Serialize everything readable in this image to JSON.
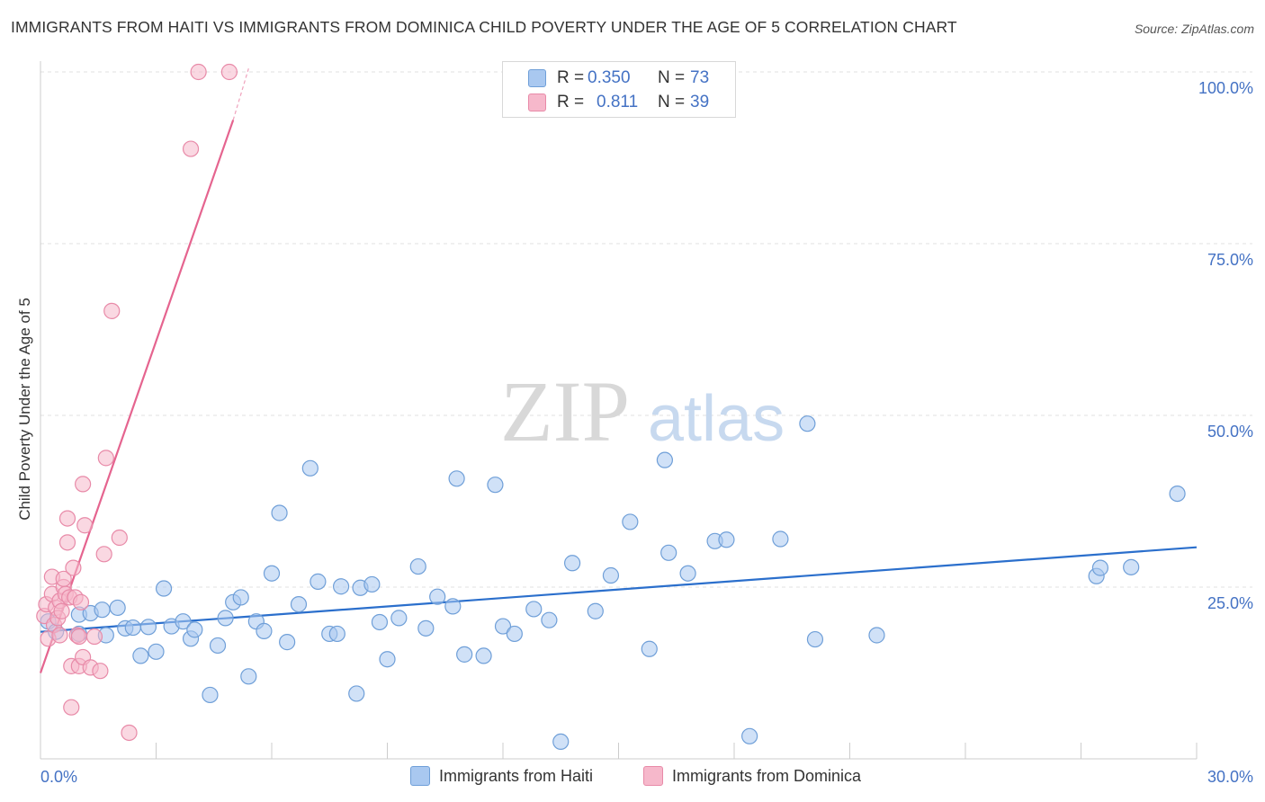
{
  "title": "IMMIGRANTS FROM HAITI VS IMMIGRANTS FROM DOMINICA CHILD POVERTY UNDER THE AGE OF 5 CORRELATION CHART",
  "source": "Source: ZipAtlas.com",
  "watermark": {
    "zip": "ZIP",
    "atlas": "atlas"
  },
  "legend": {
    "rows": [
      {
        "r_label": "R =",
        "r_value": "0.350",
        "n_label": "N =",
        "n_value": "73",
        "color": "#a9c8f0",
        "border": "#6f9fd8"
      },
      {
        "r_label": "R =",
        "r_value": "0.811",
        "n_label": "N =",
        "n_value": "39",
        "color": "#f6b8cb",
        "border": "#e88aa8"
      }
    ]
  },
  "bottom_legend": [
    {
      "label": "Immigrants from Haiti",
      "color": "#a9c8f0",
      "border": "#6f9fd8"
    },
    {
      "label": "Immigrants from Dominica",
      "color": "#f6b8cb",
      "border": "#e88aa8"
    }
  ],
  "chart_data": {
    "type": "scatter",
    "title": "IMMIGRANTS FROM HAITI VS IMMIGRANTS FROM DOMINICA CHILD POVERTY UNDER THE AGE OF 5 CORRELATION CHART",
    "xlabel": "",
    "ylabel": "Child Poverty Under the Age of 5",
    "xlim": [
      0,
      30
    ],
    "ylim": [
      0,
      100
    ],
    "x_tick_labels": [
      "0.0%",
      "30.0%"
    ],
    "y_tick_labels": [
      "25.0%",
      "50.0%",
      "75.0%",
      "100.0%"
    ],
    "y_ticks": [
      25,
      50,
      75,
      100
    ],
    "grid": true,
    "legend_position": "top-center",
    "series": [
      {
        "name": "Immigrants from Haiti",
        "color": "#6f9fd8",
        "fill": "#a9c8f0",
        "trend": {
          "x": [
            0,
            30
          ],
          "y": [
            18.5,
            30.8
          ],
          "color": "#2b6fcc"
        },
        "points": [
          [
            0.2,
            20.0
          ],
          [
            0.4,
            18.5
          ],
          [
            1.0,
            18.2
          ],
          [
            1.0,
            21.0
          ],
          [
            1.3,
            21.2
          ],
          [
            1.6,
            21.7
          ],
          [
            1.7,
            18.0
          ],
          [
            2.0,
            22.0
          ],
          [
            2.2,
            19.0
          ],
          [
            2.4,
            19.1
          ],
          [
            2.6,
            15.0
          ],
          [
            2.8,
            19.2
          ],
          [
            3.0,
            15.6
          ],
          [
            3.2,
            24.8
          ],
          [
            3.4,
            19.3
          ],
          [
            3.7,
            20.0
          ],
          [
            3.9,
            17.5
          ],
          [
            4.0,
            18.8
          ],
          [
            4.4,
            9.3
          ],
          [
            4.6,
            16.5
          ],
          [
            4.8,
            20.5
          ],
          [
            5.0,
            22.8
          ],
          [
            5.2,
            23.5
          ],
          [
            5.4,
            12.0
          ],
          [
            5.6,
            20.0
          ],
          [
            5.8,
            18.6
          ],
          [
            6.0,
            27.0
          ],
          [
            6.2,
            35.8
          ],
          [
            6.4,
            17.0
          ],
          [
            6.7,
            22.5
          ],
          [
            7.0,
            42.3
          ],
          [
            7.2,
            25.8
          ],
          [
            7.5,
            18.2
          ],
          [
            7.7,
            18.2
          ],
          [
            7.8,
            25.1
          ],
          [
            8.2,
            9.5
          ],
          [
            8.3,
            24.9
          ],
          [
            8.6,
            25.4
          ],
          [
            8.8,
            19.9
          ],
          [
            9.0,
            14.5
          ],
          [
            9.3,
            20.5
          ],
          [
            9.8,
            28.0
          ],
          [
            10.0,
            19.0
          ],
          [
            10.3,
            23.6
          ],
          [
            10.7,
            22.2
          ],
          [
            10.8,
            40.8
          ],
          [
            11.0,
            15.2
          ],
          [
            11.5,
            15.0
          ],
          [
            11.8,
            39.9
          ],
          [
            12.0,
            19.3
          ],
          [
            12.3,
            18.2
          ],
          [
            12.8,
            21.8
          ],
          [
            13.2,
            20.2
          ],
          [
            13.5,
            2.5
          ],
          [
            13.8,
            28.5
          ],
          [
            14.4,
            21.5
          ],
          [
            14.8,
            26.7
          ],
          [
            15.3,
            34.5
          ],
          [
            15.8,
            16.0
          ],
          [
            16.2,
            43.5
          ],
          [
            16.3,
            30.0
          ],
          [
            16.8,
            27.0
          ],
          [
            17.5,
            31.7
          ],
          [
            18.4,
            3.3
          ],
          [
            19.2,
            32.0
          ],
          [
            19.9,
            48.8
          ],
          [
            20.1,
            17.4
          ],
          [
            21.7,
            18.0
          ],
          [
            27.4,
            26.6
          ],
          [
            27.5,
            27.8
          ],
          [
            28.3,
            27.9
          ],
          [
            29.5,
            38.6
          ],
          [
            17.8,
            31.9
          ]
        ]
      },
      {
        "name": "Immigrants from Dominica",
        "color": "#e88aa8",
        "fill": "#f6b8cb",
        "trend": {
          "x": [
            0,
            5.0
          ],
          "y": [
            12.5,
            93.0
          ],
          "dash_x": [
            5.0,
            5.4
          ],
          "dash_y": [
            93.0,
            100.5
          ],
          "color": "#e5648f"
        },
        "points": [
          [
            0.1,
            20.8
          ],
          [
            0.15,
            22.5
          ],
          [
            0.2,
            17.5
          ],
          [
            0.3,
            24.0
          ],
          [
            0.3,
            26.5
          ],
          [
            0.35,
            19.5
          ],
          [
            0.4,
            22.0
          ],
          [
            0.45,
            20.5
          ],
          [
            0.5,
            18.0
          ],
          [
            0.5,
            23.0
          ],
          [
            0.55,
            21.5
          ],
          [
            0.6,
            25.0
          ],
          [
            0.6,
            26.2
          ],
          [
            0.65,
            24.0
          ],
          [
            0.7,
            31.5
          ],
          [
            0.7,
            35.0
          ],
          [
            0.75,
            23.5
          ],
          [
            0.8,
            7.5
          ],
          [
            0.8,
            13.5
          ],
          [
            0.85,
            27.8
          ],
          [
            0.9,
            23.5
          ],
          [
            0.95,
            18.0
          ],
          [
            1.0,
            13.5
          ],
          [
            1.0,
            17.8
          ],
          [
            1.05,
            22.8
          ],
          [
            1.1,
            14.8
          ],
          [
            1.1,
            40.0
          ],
          [
            1.15,
            34.0
          ],
          [
            1.3,
            13.3
          ],
          [
            1.4,
            17.8
          ],
          [
            1.55,
            12.8
          ],
          [
            1.65,
            29.8
          ],
          [
            1.7,
            43.8
          ],
          [
            1.85,
            65.2
          ],
          [
            2.05,
            32.2
          ],
          [
            2.3,
            3.8
          ],
          [
            3.9,
            88.8
          ],
          [
            4.1,
            100.0
          ],
          [
            4.9,
            100.0
          ]
        ]
      }
    ]
  }
}
